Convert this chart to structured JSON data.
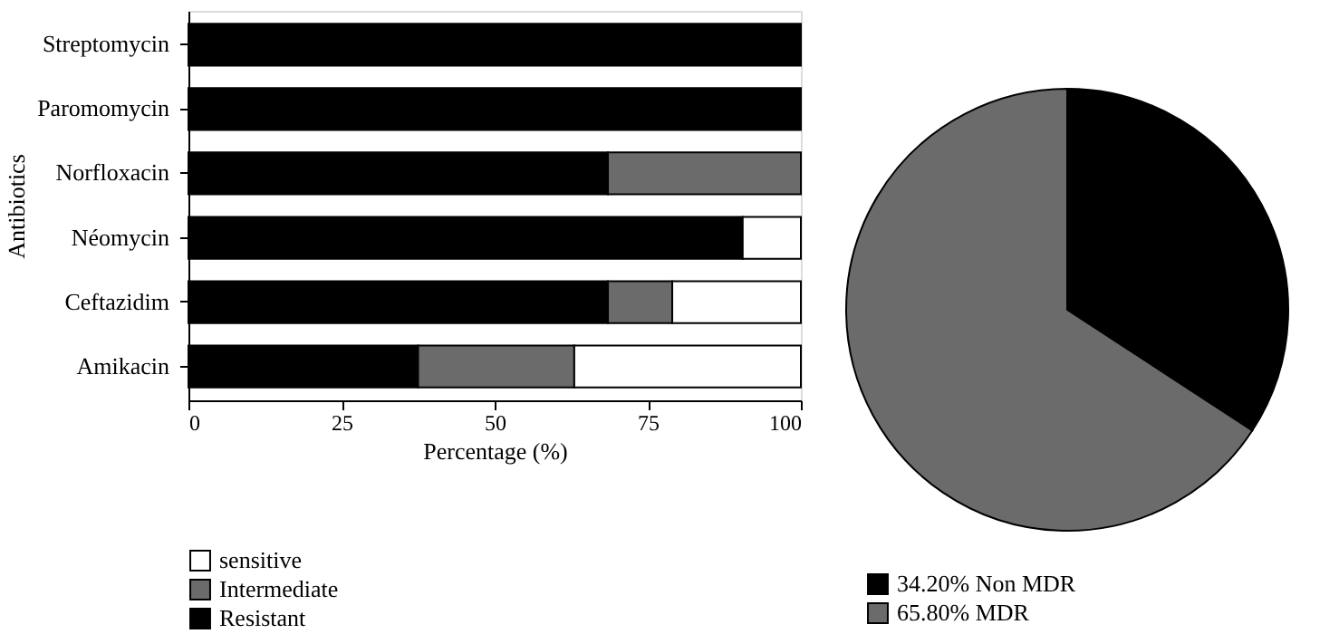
{
  "chart_data": [
    {
      "type": "bar",
      "orientation": "horizontal",
      "stacked": true,
      "xlabel": "Percentage (%)",
      "ylabel": "Antibiotics",
      "categories": [
        "Streptomycin",
        "Paromomycin",
        "Norfloxacin",
        "Néomycin",
        "Ceftazidim",
        "Amikacin"
      ],
      "series": [
        {
          "name": "Resistant",
          "color": "#000000",
          "values": [
            100,
            100,
            68.5,
            90.5,
            68.5,
            37.5
          ]
        },
        {
          "name": "Intermediate",
          "color": "#6b6b6b",
          "values": [
            null,
            null,
            31.5,
            null,
            10.5,
            25.5
          ]
        },
        {
          "name": "sensitive",
          "color": "#ffffff",
          "values": [
            null,
            null,
            null,
            9.5,
            21,
            37
          ]
        }
      ],
      "xlim": [
        0,
        100
      ],
      "xticks": [
        0,
        25,
        50,
        75,
        100
      ],
      "grid": false,
      "legend": "bottom left"
    },
    {
      "type": "pie",
      "categories": [
        "34.20% Non MDR",
        "65.80% MDR"
      ],
      "values": [
        34.2,
        65.8
      ],
      "colors": [
        "#000000",
        "#6b6b6b"
      ],
      "legend": "bottom left"
    }
  ]
}
